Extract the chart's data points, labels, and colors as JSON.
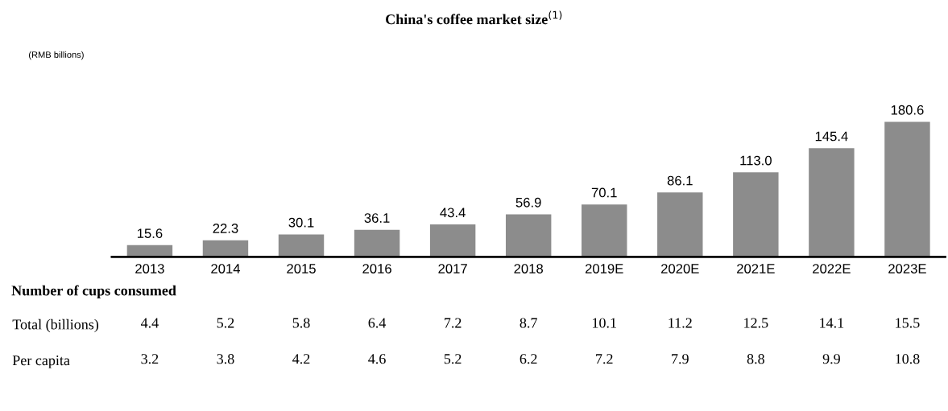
{
  "chart_data": [
    {
      "type": "bar",
      "title": "China's coffee market size$^{(1)}$",
      "ylabel": "(RMB billions)",
      "categories": [
        "2013",
        "2014",
        "2015",
        "2016",
        "2017",
        "2018",
        "2019E",
        "2020E",
        "2021E",
        "2022E",
        "2023E"
      ],
      "values": [
        15.6,
        22.3,
        30.1,
        36.1,
        43.4,
        56.9,
        70.1,
        86.1,
        113.0,
        145.4,
        180.6
      ],
      "value_labels": [
        "15.6",
        "22.3",
        "30.1",
        "36.1",
        "43.4",
        "56.9",
        "70.1",
        "86.1",
        "113.0",
        "145.4",
        "180.6"
      ],
      "color": "#8c8c8c",
      "tick_labels": "x"
    },
    {
      "type": "heatmap",
      "title": "Number of cups consumed",
      "categories": [
        null,
        null,
        null,
        null,
        null,
        null,
        null,
        null,
        null,
        null,
        null
      ],
      "y_categories": [
        "Total (billions)",
        "Per capita"
      ],
      "cells": [
        [
          4.4,
          5.2,
          5.8,
          6.4,
          7.2,
          8.7,
          10.1,
          11.2,
          12.5,
          14.1,
          15.5
        ],
        [
          3.2,
          3.8,
          4.2,
          4.6,
          5.2,
          6.2,
          7.2,
          7.9,
          8.8,
          9.9,
          10.8
        ]
      ],
      "cell_labels": [
        [
          "4.4",
          "5.2",
          "5.8",
          "6.4",
          "7.2",
          "8.7",
          "10.1",
          "11.2",
          "12.5",
          "14.1",
          "15.5"
        ],
        [
          "3.2",
          "3.8",
          "4.2",
          "4.6",
          "5.2",
          "6.2",
          "7.2",
          "7.9",
          "8.8",
          "9.9",
          "10.8"
        ]
      ],
      "tick_labels": "y"
    }
  ]
}
